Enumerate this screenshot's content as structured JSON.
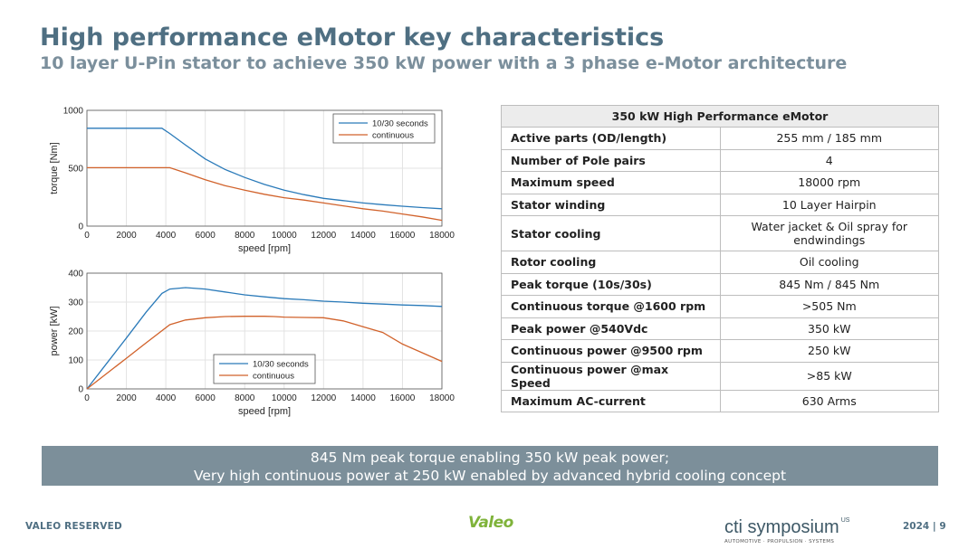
{
  "header": {
    "title": "High performance eMotor key characteristics",
    "subtitle": "10 layer U-Pin stator to achieve 350 kW power with a 3 phase e-Motor architecture"
  },
  "colors": {
    "series_blue": "#2a7ab9",
    "series_orange": "#d1622b",
    "title": "#4f6f82",
    "banner": "#7c8f9a",
    "valeo_green": "#7fb33a"
  },
  "chart_data": [
    {
      "type": "line",
      "xlabel": "speed [rpm]",
      "ylabel": "torque [Nm]",
      "xlim": [
        0,
        18000
      ],
      "ylim": [
        0,
        1000
      ],
      "xticks": [
        0,
        2000,
        4000,
        6000,
        8000,
        10000,
        12000,
        14000,
        16000,
        18000
      ],
      "yticks": [
        0,
        500,
        1000
      ],
      "legend_position": "top-right",
      "series": [
        {
          "name": "10/30 seconds",
          "color": "#2a7ab9",
          "x": [
            0,
            3800,
            4200,
            5000,
            6000,
            7000,
            8000,
            9000,
            10000,
            11000,
            12000,
            13000,
            14000,
            15000,
            16000,
            17000,
            18000
          ],
          "y": [
            845,
            845,
            800,
            700,
            580,
            490,
            420,
            360,
            310,
            272,
            240,
            220,
            200,
            185,
            172,
            160,
            150
          ]
        },
        {
          "name": "continuous",
          "color": "#d1622b",
          "x": [
            0,
            4200,
            5000,
            6000,
            7000,
            8000,
            9000,
            10000,
            11000,
            12000,
            13000,
            14000,
            15000,
            16000,
            17000,
            18000
          ],
          "y": [
            505,
            505,
            460,
            400,
            350,
            310,
            275,
            245,
            225,
            200,
            175,
            150,
            130,
            105,
            80,
            50
          ]
        }
      ]
    },
    {
      "type": "line",
      "xlabel": "speed [rpm]",
      "ylabel": "power [kW]",
      "xlim": [
        0,
        18000
      ],
      "ylim": [
        0,
        400
      ],
      "xticks": [
        0,
        2000,
        4000,
        6000,
        8000,
        10000,
        12000,
        14000,
        16000,
        18000
      ],
      "yticks": [
        0,
        100,
        200,
        300,
        400
      ],
      "legend_position": "bottom-center",
      "series": [
        {
          "name": "10/30 seconds",
          "color": "#2a7ab9",
          "x": [
            0,
            1000,
            2000,
            3000,
            3800,
            4200,
            5000,
            6000,
            7000,
            8000,
            9000,
            10000,
            11000,
            12000,
            13000,
            14000,
            15000,
            16000,
            17000,
            18000
          ],
          "y": [
            0,
            88,
            176,
            265,
            330,
            345,
            350,
            345,
            335,
            325,
            318,
            312,
            308,
            303,
            300,
            296,
            293,
            290,
            288,
            285
          ]
        },
        {
          "name": "continuous",
          "color": "#d1622b",
          "x": [
            0,
            1000,
            2000,
            3000,
            4200,
            5000,
            6000,
            7000,
            8000,
            9000,
            9500,
            10000,
            11000,
            12000,
            13000,
            14000,
            15000,
            16000,
            17000,
            18000
          ],
          "y": [
            0,
            53,
            106,
            159,
            222,
            238,
            246,
            250,
            251,
            251,
            250,
            248,
            247,
            246,
            235,
            215,
            195,
            155,
            125,
            95
          ]
        }
      ]
    }
  ],
  "table": {
    "header": "350 kW High Performance eMotor",
    "rows": [
      {
        "param": "Active parts (OD/length)",
        "value": "255 mm / 185 mm"
      },
      {
        "param": "Number of Pole pairs",
        "value": "4"
      },
      {
        "param": "Maximum speed",
        "value": "18000 rpm"
      },
      {
        "param": "Stator winding",
        "value": "10 Layer Hairpin"
      },
      {
        "param": "Stator cooling",
        "value": "Water jacket & Oil spray for endwindings"
      },
      {
        "param": "Rotor cooling",
        "value": "Oil cooling"
      },
      {
        "param": "Peak torque (10s/30s)",
        "value": "845 Nm / 845 Nm"
      },
      {
        "param": "Continuous torque @1600 rpm",
        "value": ">505 Nm"
      },
      {
        "param": "Peak power @540Vdc",
        "value": "350 kW"
      },
      {
        "param": "Continuous power @9500 rpm",
        "value": "250 kW"
      },
      {
        "param": "Continuous power @max Speed",
        "value": ">85 kW"
      },
      {
        "param": "Maximum AC-current",
        "value": "630 Arms"
      }
    ]
  },
  "banner": {
    "line1": "845 Nm peak torque enabling 350 kW peak power;",
    "line2": "Very high continuous power at 250 kW enabled by advanced hybrid cooling concept"
  },
  "footer": {
    "left": "VALEO RESERVED",
    "valeo_logo": "Valeo",
    "cti_name": "cti symposium",
    "cti_sup": "US",
    "cti_tagline": "AUTOMOTIVE · PROPULSION · SYSTEMS",
    "year": "2024",
    "separator": "|",
    "page": "9"
  }
}
